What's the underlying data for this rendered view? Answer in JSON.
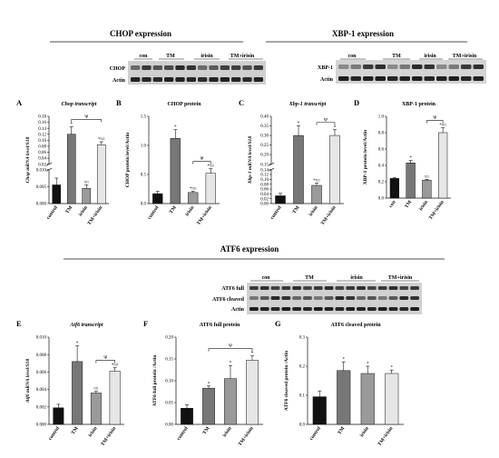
{
  "headers": {
    "chop_expression": "CHOP expression",
    "xbp1_expression": "XBP-1 expression",
    "atf6_expression": "ATF6 expression"
  },
  "blots": {
    "chop": {
      "lanes": [
        "con",
        "TM",
        "irisin",
        "TM+irisin"
      ],
      "rows": [
        "CHOP",
        "Actin"
      ]
    },
    "xbp1": {
      "lanes": [
        "con",
        "TM",
        "irisin",
        "TM+irisin"
      ],
      "rows": [
        "XBP-1",
        "Actin"
      ]
    },
    "atf6": {
      "lanes": [
        "con",
        "TM",
        "irisin",
        "TM+irisin"
      ],
      "rows": [
        "ATF6 full",
        "ATF6 cleaved",
        "Actin"
      ]
    }
  },
  "chart_data": [
    {
      "panel": "A",
      "type": "bar",
      "title": "Chop transcript",
      "ylabel": "Chop mRNA level/S18",
      "categories": [
        "control",
        "TM",
        "irisin",
        "TM+irisin"
      ],
      "values": [
        0.0055,
        0.12,
        0.0045,
        0.085
      ],
      "errors": [
        0.002,
        0.025,
        0.001,
        0.01
      ],
      "ylim_break": {
        "lower": [
          0,
          0.01
        ],
        "upper": [
          0.02,
          0.18
        ]
      },
      "ticks_lower": [
        "0.000",
        "0.005",
        "0.010"
      ],
      "ticks_upper": [
        "0.02",
        "0.04",
        "0.06",
        "0.08",
        "0.10",
        "0.12",
        "0.14",
        "0.16",
        "0.18"
      ],
      "annotations": [
        "*",
        "¤¤",
        "*¤¤",
        "Ψ"
      ],
      "colors": [
        "#111111",
        "#777777",
        "#9a9a9a",
        "#e6e6e6"
      ]
    },
    {
      "panel": "B",
      "type": "bar",
      "title": "CHOP protein",
      "ylabel": "CHOP protein level/Actin",
      "categories": [
        "control",
        "TM",
        "irisin",
        "TM+irisin"
      ],
      "values": [
        0.17,
        1.12,
        0.19,
        0.52
      ],
      "errors": [
        0.04,
        0.15,
        0.02,
        0.08
      ],
      "ylim": [
        0,
        1.5
      ],
      "ticks": [
        "0.0",
        "0.5",
        "1.0",
        "1.5"
      ],
      "annotations": [
        "*",
        "*¤¤",
        "*¤¤",
        "Ψ"
      ],
      "colors": [
        "#111111",
        "#777777",
        "#9a9a9a",
        "#e6e6e6"
      ]
    },
    {
      "panel": "C",
      "type": "bar",
      "title": "Xbp-1 transcript",
      "ylabel": "Xbp-1 mRNA level/S18",
      "categories": [
        "control",
        "TM",
        "irisin",
        "TM+irisin"
      ],
      "values": [
        0.032,
        0.3,
        0.075,
        0.3
      ],
      "errors": [
        0.01,
        0.05,
        0.01,
        0.03
      ],
      "ylim_break": {
        "lower": [
          0,
          0.14
        ],
        "upper": [
          0.15,
          0.4
        ]
      },
      "ticks_lower": [
        "0.00",
        "0.02",
        "0.04",
        "0.06",
        "0.08",
        "0.10",
        "0.12",
        "0.14"
      ],
      "ticks_upper": [
        "0.15",
        "0.20",
        "0.25",
        "0.30",
        "0.35",
        "0.40"
      ],
      "annotations": [
        "*",
        "*¤¤",
        "*",
        "Ψ"
      ],
      "colors": [
        "#111111",
        "#777777",
        "#9a9a9a",
        "#e6e6e6"
      ]
    },
    {
      "panel": "D",
      "type": "bar",
      "title": "XBP-1 protein",
      "ylabel": "XBP-1 protein level/Actin",
      "categories": [
        "con",
        "TM",
        "irisin",
        "TM+irisin"
      ],
      "values": [
        0.24,
        0.43,
        0.22,
        0.8
      ],
      "errors": [
        0.01,
        0.03,
        0.01,
        0.06
      ],
      "ylim": [
        0,
        1.0
      ],
      "ticks": [
        "0.0",
        "0.2",
        "0.4",
        "0.6",
        "0.8",
        "1.0"
      ],
      "annotations": [
        "*",
        "¤¤",
        "*¤¤",
        "Ψ"
      ],
      "colors": [
        "#111111",
        "#777777",
        "#9a9a9a",
        "#e6e6e6"
      ]
    },
    {
      "panel": "E",
      "type": "bar",
      "title": "Atf6 transcript",
      "ylabel": "Atf6 mRNA level/S18",
      "categories": [
        "control",
        "TM",
        "irisin",
        "TM+irisin"
      ],
      "values": [
        0.0019,
        0.0072,
        0.0036,
        0.0061
      ],
      "errors": [
        0.0004,
        0.0018,
        0.0002,
        0.0004
      ],
      "ylim": [
        0,
        0.01
      ],
      "ticks": [
        "0.000",
        "0.002",
        "0.004",
        "0.006",
        "0.008",
        "0.010"
      ],
      "annotations": [
        "*",
        "¤¤",
        "*¤¤",
        "Ψ"
      ],
      "colors": [
        "#111111",
        "#777777",
        "#9a9a9a",
        "#e6e6e6"
      ]
    },
    {
      "panel": "F",
      "type": "bar",
      "title": "ATF6 full protein",
      "ylabel": "ATF6 full protein /Actin",
      "categories": [
        "control",
        "TM",
        "irisin",
        "TM+irisin"
      ],
      "values": [
        0.037,
        0.083,
        0.105,
        0.147
      ],
      "errors": [
        0.008,
        0.005,
        0.03,
        0.01
      ],
      "ylim": [
        0,
        0.2
      ],
      "ticks": [
        "0.00",
        "0.05",
        "0.10",
        "0.15",
        "0.20"
      ],
      "annotations": [
        "*",
        "*",
        "*",
        "Ψ"
      ],
      "colors": [
        "#111111",
        "#777777",
        "#9a9a9a",
        "#e6e6e6"
      ]
    },
    {
      "panel": "G",
      "type": "bar",
      "title": "ATF6 cleaved protein",
      "ylabel": "ATF6 cleaved protein /Actin",
      "categories": [
        "control",
        "TM",
        "irisin",
        "TM+irisin"
      ],
      "values": [
        0.095,
        0.185,
        0.175,
        0.175
      ],
      "errors": [
        0.02,
        0.03,
        0.025,
        0.012
      ],
      "ylim": [
        0,
        0.3
      ],
      "ticks": [
        "0.0",
        "0.1",
        "0.2",
        "0.3"
      ],
      "annotations": [
        "*",
        "*",
        "*"
      ],
      "colors": [
        "#111111",
        "#777777",
        "#9a9a9a",
        "#e6e6e6"
      ]
    }
  ]
}
